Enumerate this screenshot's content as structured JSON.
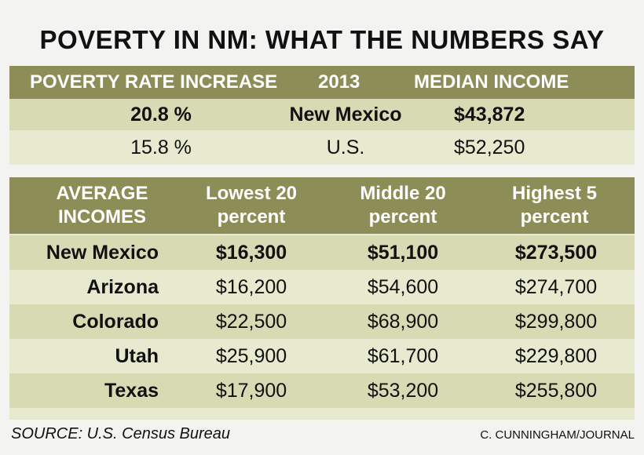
{
  "header": {
    "title": "POVERTY IN NM: WHAT THE NUMBERS SAY"
  },
  "poverty_table": {
    "columns": [
      "POVERTY RATE INCREASE",
      "2013",
      "MEDIAN INCOME"
    ],
    "rows": [
      [
        "20.8 %",
        "New Mexico",
        "$43,872"
      ],
      [
        "15.8 %",
        "U.S.",
        "$52,250"
      ]
    ]
  },
  "income_table": {
    "columns": [
      "AVERAGE INCOMES",
      "Lowest 20 percent",
      "Middle 20 percent",
      "Highest 5 percent"
    ],
    "rows": [
      [
        "New Mexico",
        "$16,300",
        "$51,100",
        "$273,500"
      ],
      [
        "Arizona",
        "$16,200",
        "$54,600",
        "$274,700"
      ],
      [
        "Colorado",
        "$22,500",
        "$68,900",
        "$299,800"
      ],
      [
        "Utah",
        "$25,900",
        "$61,700",
        "$229,800"
      ],
      [
        "Texas",
        "$17,900",
        "$53,200",
        "$255,800"
      ]
    ]
  },
  "footer": {
    "source": "SOURCE: U.S. Census Bureau",
    "credit": "C. CUNNINGHAM/JOURNAL"
  }
}
